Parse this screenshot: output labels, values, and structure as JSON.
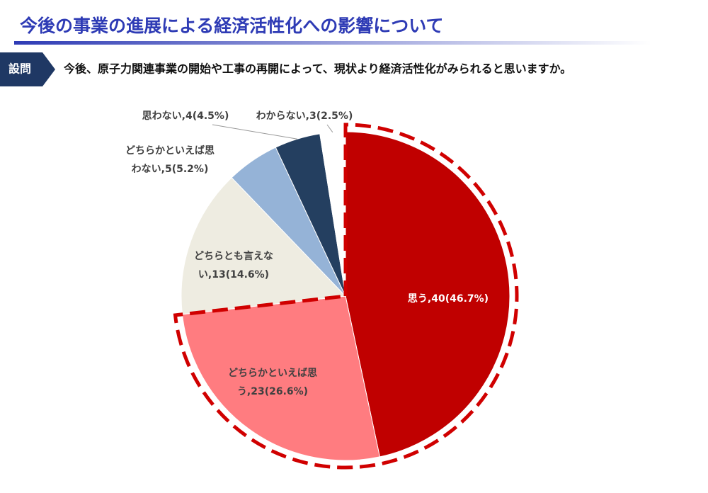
{
  "header": {
    "title": "今後の事業の進展による経済活性化への影響について",
    "question_tag": "設問",
    "question": "今後、原子力関連事業の開始や工事の再開によって、現状より経済活性化がみられると思いますか。"
  },
  "chart_data": {
    "type": "pie",
    "values": [
      46.7,
      26.6,
      14.6,
      5.2,
      4.5,
      2.5
    ],
    "value_labels": [
      [
        "思う,40(46.7%)"
      ],
      [
        "どちらかといえば思",
        "う,23(26.6%)"
      ],
      [
        "どちらとも言えな",
        "い,13(14.6%)"
      ],
      [
        "どちらかといえば思",
        "わない,5(5.2%)"
      ],
      [
        "思わない,4(4.5%)"
      ],
      [
        "わからない,3(2.5%)"
      ]
    ],
    "colors": [
      "#c00000",
      "#ff7c80",
      "#eeece1",
      "#95b3d7",
      "#243f60",
      "#ffffff"
    ]
  }
}
